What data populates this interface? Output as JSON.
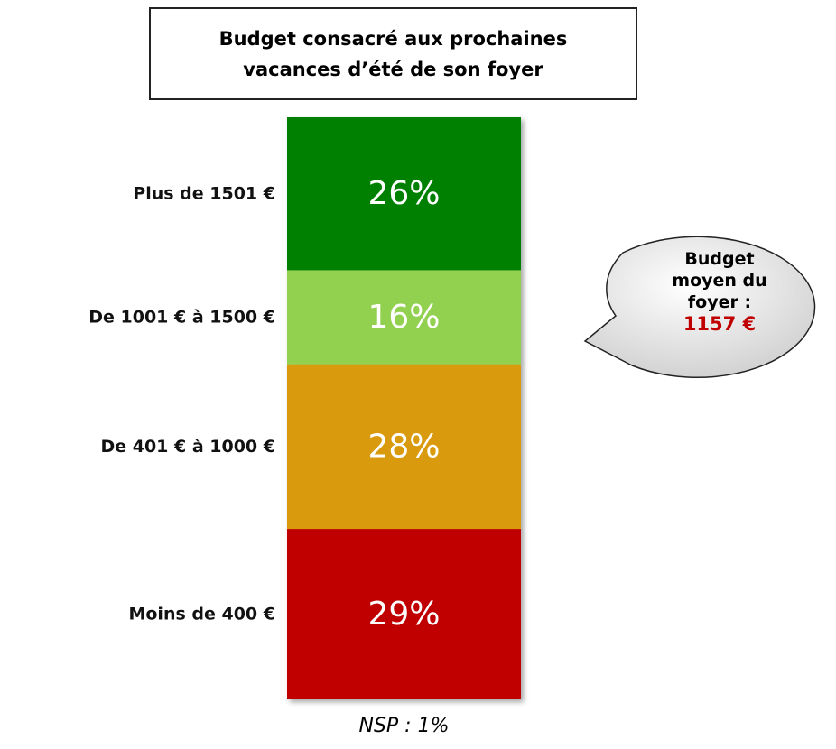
{
  "chart_data": {
    "type": "bar",
    "stacked": true,
    "title": "Budget consacré aux prochaines vacances d’été de son foyer",
    "categories": [
      "Moins de 400 €",
      "De 401 € à 1000 €",
      "De 1001 € à 1500 €",
      "Plus de 1501 €"
    ],
    "values": [
      29,
      28,
      16,
      26
    ],
    "value_labels": [
      "29%",
      "28%",
      "16%",
      "26%"
    ],
    "colors": [
      "#c00000",
      "#d99b0c",
      "#92d050",
      "#008000"
    ],
    "note": "NSP : 1%",
    "callout": {
      "label": "Budget moyen du foyer :",
      "value": "1157 €"
    }
  }
}
